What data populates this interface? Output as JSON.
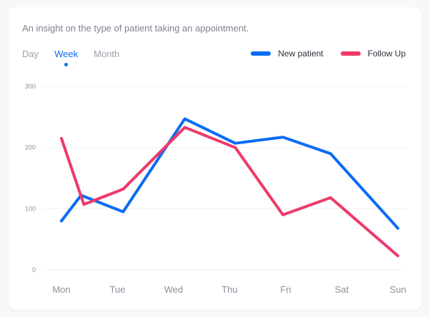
{
  "card": {
    "subtitle": "An insight on the type of patient taking an appointment."
  },
  "tabs": [
    {
      "label": "Day",
      "active": false
    },
    {
      "label": "Week",
      "active": true
    },
    {
      "label": "Month",
      "active": false
    }
  ],
  "colors": {
    "new_patient": "#0b6cf6",
    "follow_up": "#ee3a6a",
    "grid": "#f0f1f3"
  },
  "chart_data": {
    "type": "line",
    "title": "",
    "xlabel": "",
    "ylabel": "",
    "categories": [
      "Mon",
      "Tue",
      "Wed",
      "Thu",
      "Fri",
      "Sat",
      "Sun"
    ],
    "ylim": [
      0,
      300
    ],
    "yticks": [
      "0",
      "100",
      "200",
      "300"
    ],
    "grid": true,
    "legend_position": "top-right",
    "series": [
      {
        "name": "New patient",
        "color": "#0b6cf6",
        "points": [
          [
            0,
            80
          ],
          [
            0.35,
            122
          ],
          [
            1.1,
            95
          ],
          [
            2.2,
            247
          ],
          [
            3.1,
            207
          ],
          [
            3.95,
            217
          ],
          [
            4.8,
            190
          ],
          [
            6.0,
            68
          ]
        ]
      },
      {
        "name": "Follow Up",
        "color": "#ee3a6a",
        "points": [
          [
            0,
            215
          ],
          [
            0.4,
            107
          ],
          [
            1.1,
            132
          ],
          [
            2.2,
            233
          ],
          [
            3.1,
            200
          ],
          [
            3.95,
            90
          ],
          [
            4.8,
            118
          ],
          [
            6.0,
            23
          ]
        ]
      }
    ]
  }
}
